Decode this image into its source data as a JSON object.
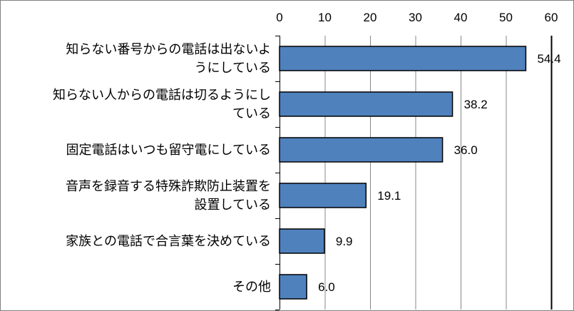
{
  "chart_data": {
    "type": "bar",
    "orientation": "horizontal",
    "categories": [
      [
        "知らない番号からの電話は出ないよ",
        "うにしている"
      ],
      [
        "知らない人からの電話は切るようにし",
        "ている"
      ],
      [
        "固定電話はいつも留守電にしている"
      ],
      [
        "音声を録音する特殊詐欺防止装置を",
        "設置している"
      ],
      [
        "家族との電話で合言葉を決めている"
      ],
      [
        "その他"
      ]
    ],
    "values": [
      54.4,
      38.2,
      36.0,
      19.1,
      9.9,
      6.0
    ],
    "data_labels": [
      "54.4",
      "38.2",
      "36.0",
      "19.1",
      "9.9",
      "6.0"
    ],
    "xlim": [
      0,
      60
    ],
    "ticks": [
      "0",
      "10",
      "20",
      "30",
      "40",
      "50",
      "60"
    ],
    "tick_values": [
      0,
      10,
      20,
      30,
      40,
      50,
      60
    ],
    "axis_position": "top",
    "grid": true,
    "bar_color": "#4F81BD",
    "bar_edge_color": "#000000",
    "title": "",
    "xlabel": "",
    "ylabel": ""
  }
}
